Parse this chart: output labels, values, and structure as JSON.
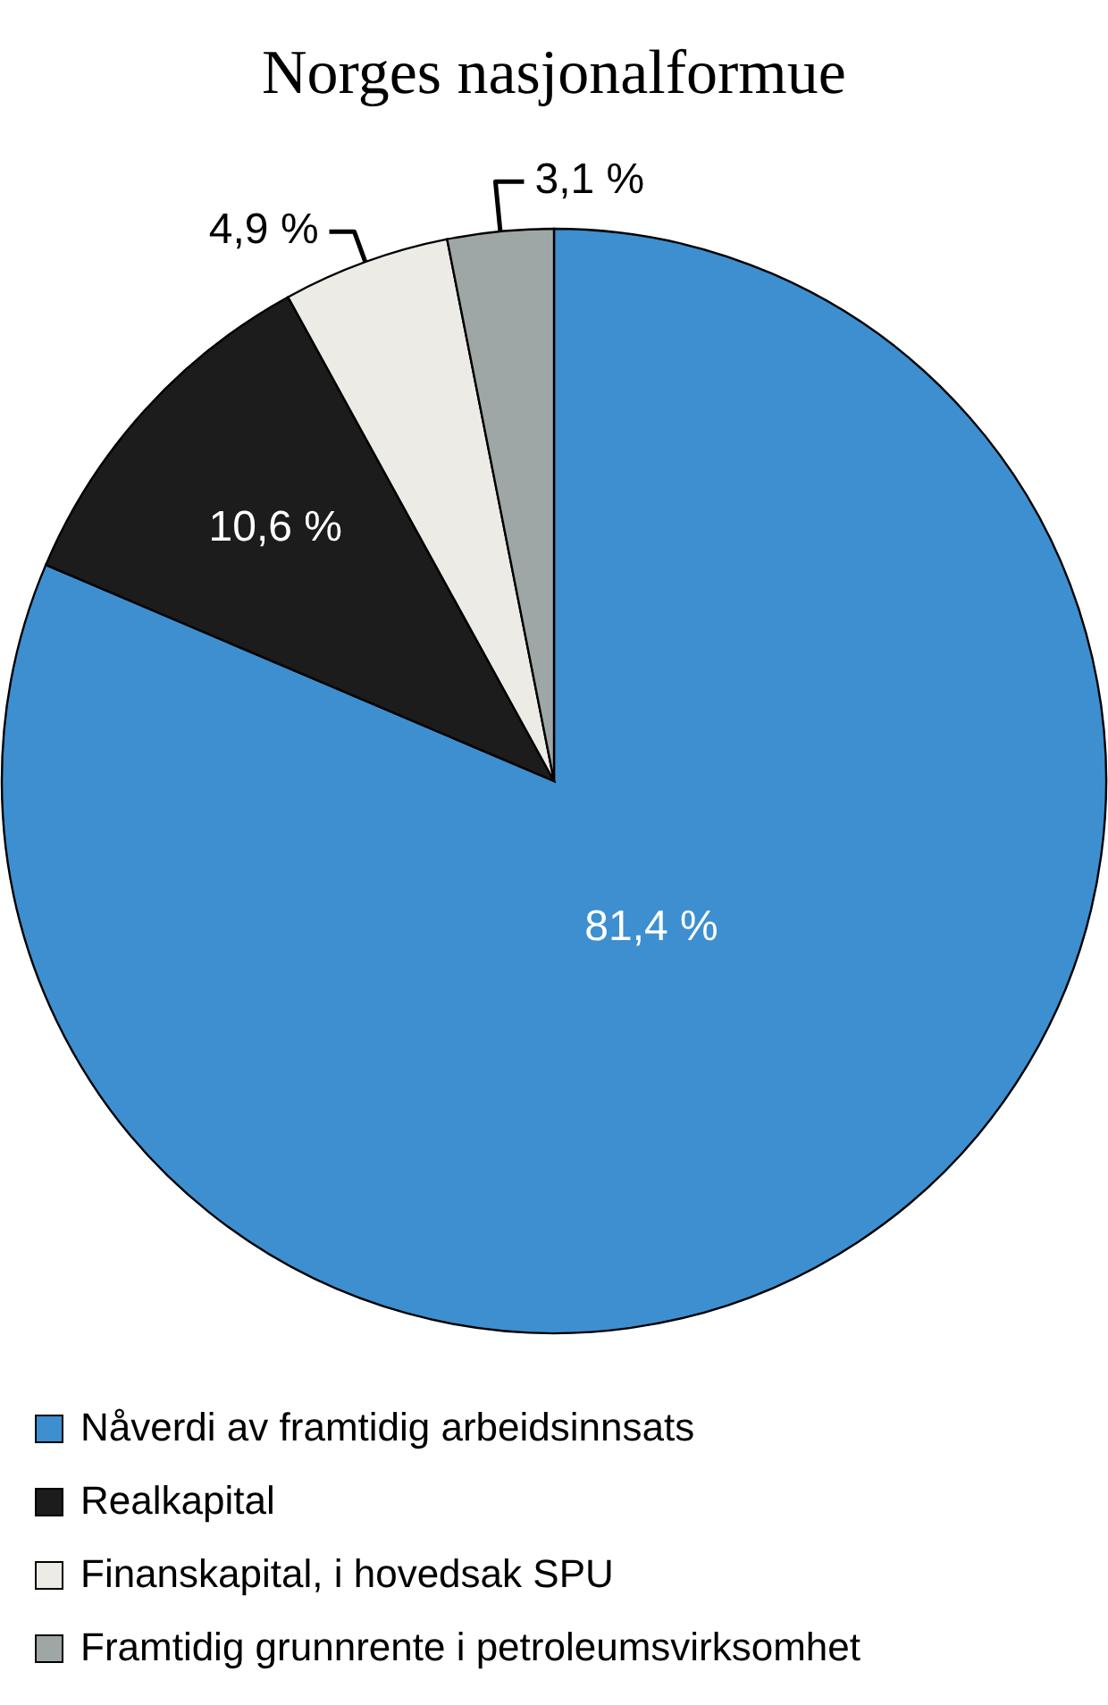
{
  "chart_data": {
    "type": "pie",
    "title": "Norges nasjonalformue",
    "categories": [
      "Nåverdi av framtidig arbeidsinnsats",
      "Realkapital",
      "Finanskapital, i hovedsak SPU",
      "Framtidig grunnrente i petroleumsvirksomhet"
    ],
    "values": [
      81.4,
      10.6,
      4.9,
      3.1
    ],
    "colors": [
      "#3d8fd0",
      "#1c1c1c",
      "#edebe6",
      "#9ea7a5"
    ],
    "value_labels": [
      "81,4 %",
      "10,6 %",
      "4,9 %",
      "3,1 %"
    ],
    "legend": "bottom"
  }
}
